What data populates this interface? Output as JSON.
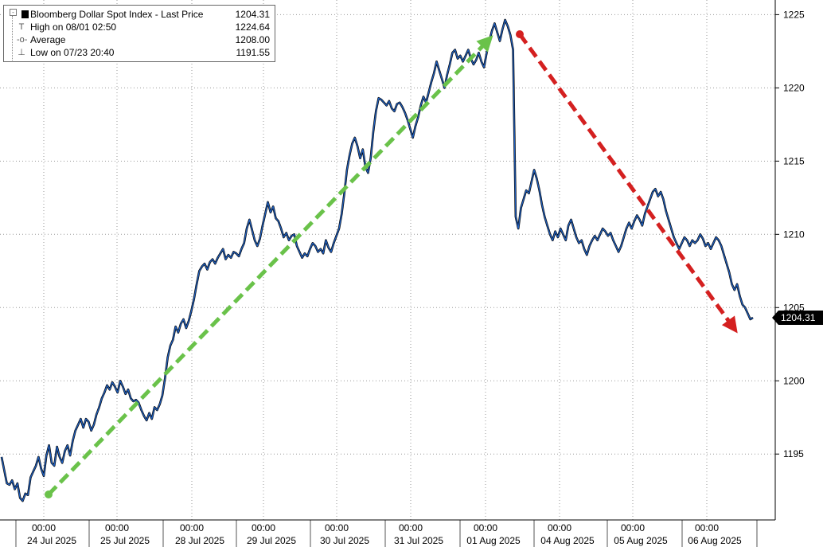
{
  "chart_data": {
    "type": "line",
    "title": "Bloomberg Dollar Spot Index - Last Price",
    "legend": [
      {
        "label": "Bloomberg Dollar Spot Index - Last Price",
        "value": "1204.31"
      },
      {
        "label": "High on 08/01 02:50",
        "value": "1224.64"
      },
      {
        "label": "Average",
        "value": "1208.00"
      },
      {
        "label": "Low on 07/23 20:40",
        "value": "1191.55"
      }
    ],
    "last_price_tag": "1204.31",
    "last_price": 1204.31,
    "ylim": [
      1190.5,
      1226
    ],
    "y_ticks": [
      1195,
      1200,
      1205,
      1210,
      1215,
      1220,
      1225
    ],
    "x_tick_labels": [
      {
        "time": "00:00",
        "date": "24 Jul 2025"
      },
      {
        "time": "00:00",
        "date": "25 Jul 2025"
      },
      {
        "time": "00:00",
        "date": "28 Jul 2025"
      },
      {
        "time": "00:00",
        "date": "29 Jul 2025"
      },
      {
        "time": "00:00",
        "date": "30 Jul 2025"
      },
      {
        "time": "00:00",
        "date": "31 Jul 2025"
      },
      {
        "time": "00:00",
        "date": "01 Aug 2025"
      },
      {
        "time": "00:00",
        "date": "04 Aug 2025"
      },
      {
        "time": "00:00",
        "date": "05 Aug 2025"
      },
      {
        "time": "00:00",
        "date": "06 Aug 2025"
      }
    ],
    "grid": true,
    "legend_position": "top-left",
    "colors": {
      "series": "#1f5fbf",
      "series_edge": "#000000",
      "up_arrow": "#6ac24a",
      "down_arrow": "#d42020",
      "grid": "#9a9a9a"
    },
    "series": [
      {
        "values": [
          1194.8,
          1193.9,
          1193.0,
          1192.9,
          1193.2,
          1192.6,
          1193.0,
          1192.0,
          1191.8,
          1192.3,
          1192.2,
          1193.4,
          1193.8,
          1194.2,
          1194.8,
          1194.0,
          1193.5,
          1194.9,
          1195.6,
          1194.4,
          1194.2,
          1195.5,
          1194.8,
          1194.4,
          1195.2,
          1195.6,
          1194.9,
          1195.9,
          1196.6,
          1197.0,
          1197.4,
          1196.8,
          1197.4,
          1197.2,
          1196.6,
          1197.0,
          1197.7,
          1198.2,
          1198.8,
          1199.2,
          1199.7,
          1199.4,
          1199.9,
          1199.6,
          1199.2,
          1200.0,
          1199.6,
          1199.1,
          1199.4,
          1198.8,
          1198.6,
          1198.7,
          1198.5,
          1198.0,
          1197.6,
          1197.3,
          1197.8,
          1197.4,
          1198.2,
          1198.0,
          1198.4,
          1199.0,
          1200.2,
          1201.6,
          1202.4,
          1202.8,
          1203.7,
          1203.3,
          1203.9,
          1204.2,
          1203.6,
          1204.1,
          1204.8,
          1205.6,
          1206.6,
          1207.5,
          1207.8,
          1208.0,
          1207.6,
          1208.1,
          1208.3,
          1208.0,
          1208.4,
          1208.7,
          1209.0,
          1208.3,
          1208.6,
          1208.4,
          1208.8,
          1208.7,
          1208.5,
          1209.0,
          1209.4,
          1210.4,
          1211.0,
          1210.3,
          1209.6,
          1209.2,
          1209.7,
          1210.6,
          1211.4,
          1212.2,
          1211.5,
          1211.9,
          1211.1,
          1210.9,
          1210.4,
          1209.8,
          1210.1,
          1209.6,
          1209.9,
          1210.0,
          1209.2,
          1208.8,
          1208.4,
          1208.7,
          1208.5,
          1209.0,
          1209.4,
          1209.2,
          1208.8,
          1209.0,
          1208.7,
          1209.6,
          1209.1,
          1208.8,
          1209.4,
          1209.9,
          1210.4,
          1211.4,
          1212.8,
          1214.4,
          1215.4,
          1216.2,
          1216.6,
          1216.0,
          1215.2,
          1215.8,
          1214.6,
          1214.2,
          1215.2,
          1217.0,
          1218.4,
          1219.3,
          1219.2,
          1219.0,
          1218.8,
          1219.1,
          1218.6,
          1218.4,
          1218.9,
          1219.0,
          1218.7,
          1218.3,
          1217.8,
          1217.2,
          1216.6,
          1217.4,
          1218.0,
          1218.8,
          1219.4,
          1219.0,
          1219.7,
          1220.4,
          1221.0,
          1221.8,
          1221.2,
          1220.6,
          1220.0,
          1220.9,
          1221.6,
          1222.4,
          1222.6,
          1222.0,
          1222.2,
          1221.8,
          1222.2,
          1222.6,
          1222.0,
          1221.6,
          1221.9,
          1222.4,
          1221.8,
          1221.4,
          1222.4,
          1223.2,
          1223.9,
          1224.4,
          1223.8,
          1223.2,
          1224.0,
          1224.64,
          1224.2,
          1223.6,
          1222.6,
          1211.2,
          1210.4,
          1211.8,
          1212.4,
          1213.0,
          1212.8,
          1213.6,
          1214.4,
          1213.8,
          1213.0,
          1212.0,
          1211.2,
          1210.6,
          1210.0,
          1209.6,
          1210.2,
          1209.8,
          1210.4,
          1210.0,
          1209.6,
          1210.6,
          1211.0,
          1210.4,
          1209.8,
          1209.4,
          1209.6,
          1209.0,
          1208.6,
          1209.2,
          1209.6,
          1209.9,
          1209.6,
          1210.0,
          1210.4,
          1210.2,
          1209.9,
          1210.1,
          1209.6,
          1209.2,
          1208.8,
          1209.2,
          1209.8,
          1210.4,
          1210.8,
          1210.4,
          1210.9,
          1211.3,
          1211.0,
          1210.6,
          1211.4,
          1211.9,
          1212.4,
          1212.9,
          1213.1,
          1212.6,
          1212.9,
          1212.4,
          1211.6,
          1211.0,
          1210.4,
          1209.8,
          1209.4,
          1209.0,
          1209.4,
          1209.8,
          1209.6,
          1209.2,
          1209.6,
          1209.4,
          1209.6,
          1210.0,
          1209.7,
          1209.2,
          1209.4,
          1209.0,
          1209.4,
          1209.8,
          1209.6,
          1209.2,
          1208.6,
          1208.0,
          1207.4,
          1206.6,
          1206.2,
          1206.6,
          1205.8,
          1205.2,
          1205.0,
          1204.6,
          1204.2,
          1204.31
        ]
      }
    ]
  }
}
